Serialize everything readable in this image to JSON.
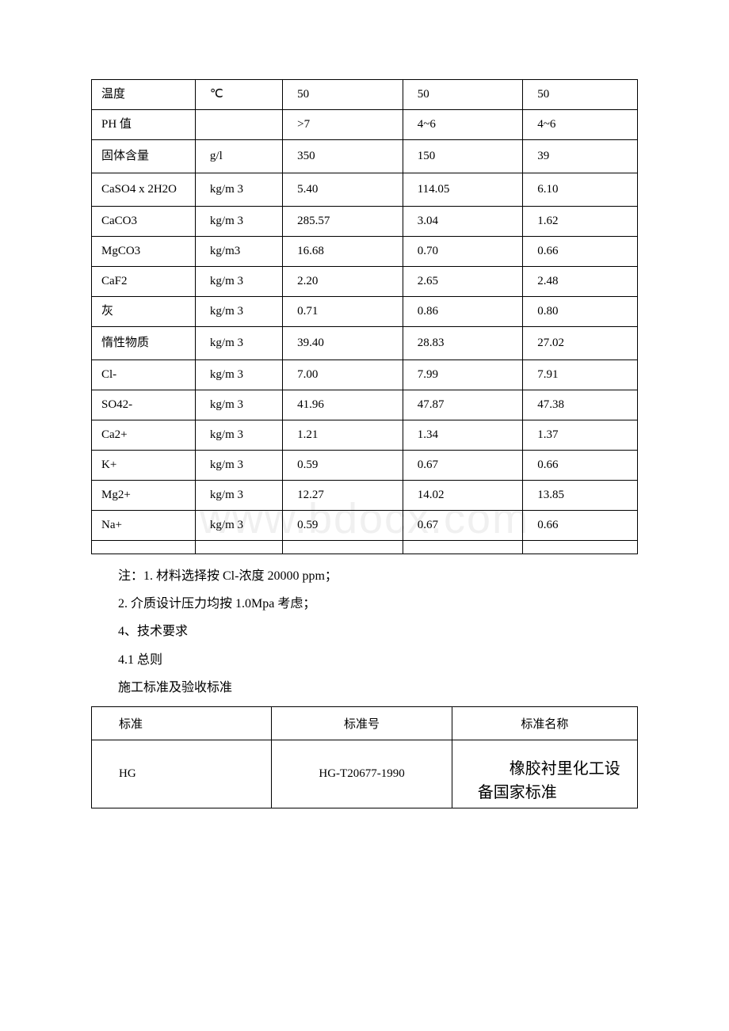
{
  "watermark": "www.bdocx.com",
  "table1": {
    "rows": [
      {
        "cells": [
          "温度",
          "℃",
          "50",
          "50",
          "50"
        ]
      },
      {
        "cells": [
          "PH 值",
          "",
          ">7",
          "4~6",
          "4~6"
        ]
      },
      {
        "cells": [
          "固体含量",
          "g/l",
          "350",
          "150",
          "39"
        ],
        "tall": true
      },
      {
        "cells": [
          "CaSO4 x 2H2O",
          "kg/m 3",
          "5.40",
          "114.05",
          "6.10"
        ],
        "tall": true
      },
      {
        "cells": [
          "CaCO3",
          "kg/m 3",
          "285.57",
          "3.04",
          "1.62"
        ]
      },
      {
        "cells": [
          "MgCO3",
          "kg/m3",
          "16.68",
          "0.70",
          "0.66"
        ]
      },
      {
        "cells": [
          "CaF2",
          "kg/m 3",
          "2.20",
          "2.65",
          "2.48"
        ]
      },
      {
        "cells": [
          "灰",
          "kg/m 3",
          "0.71",
          "0.86",
          "0.80"
        ]
      },
      {
        "cells": [
          "惰性物质",
          "kg/m 3",
          "39.40",
          "28.83",
          "27.02"
        ],
        "tall": true
      },
      {
        "cells": [
          "Cl-",
          "kg/m 3",
          "7.00",
          "7.99",
          "7.91"
        ]
      },
      {
        "cells": [
          "SO42-",
          "kg/m 3",
          "41.96",
          "47.87",
          "47.38"
        ]
      },
      {
        "cells": [
          "Ca2+",
          "kg/m 3",
          "1.21",
          "1.34",
          "1.37"
        ]
      },
      {
        "cells": [
          "K+",
          "kg/m 3",
          "0.59",
          "0.67",
          "0.66"
        ]
      },
      {
        "cells": [
          "Mg2+",
          "kg/m 3",
          "12.27",
          "14.02",
          "13.85"
        ]
      },
      {
        "cells": [
          "Na+",
          "kg/m 3",
          "0.59",
          "0.67",
          "0.66"
        ]
      },
      {
        "cells": [
          "",
          "",
          "",
          "",
          ""
        ]
      }
    ]
  },
  "notes": {
    "lines": [
      "注：1. 材料选择按 Cl-浓度 20000 ppm；",
      "2. 介质设计压力均按 1.0Mpa 考虑；",
      "4、技术要求",
      "4.1 总则",
      "施工标准及验收标准"
    ]
  },
  "table2": {
    "header": [
      "标准",
      "标准号",
      "标准名称"
    ],
    "row": {
      "c1": "HG",
      "c2": "HG-T20677-1990",
      "c3": "橡胶衬里化工设备国家标准"
    }
  }
}
